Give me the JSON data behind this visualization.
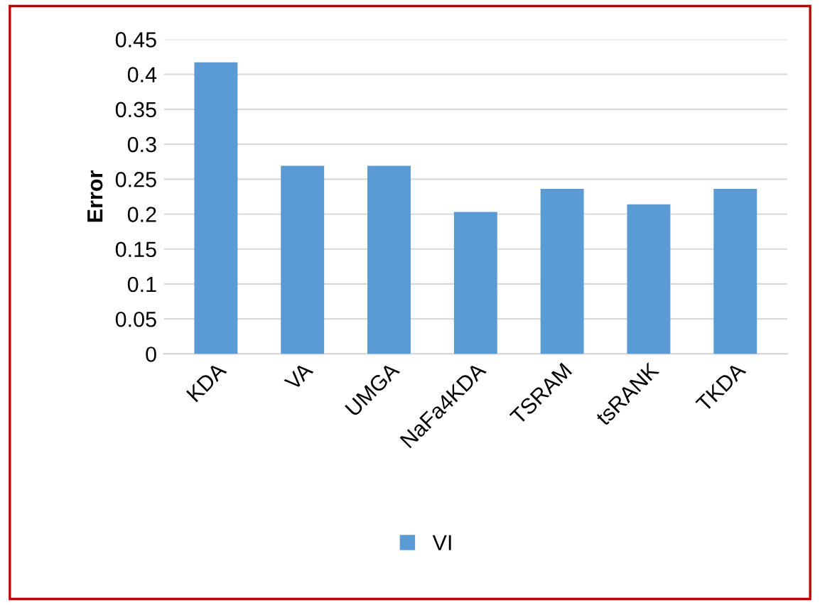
{
  "chart_data": {
    "type": "bar",
    "ylabel": "Error",
    "categories": [
      "KDA",
      "VA",
      "UMGA",
      "NaFa4KDA",
      "TSRAM",
      "tsRANK",
      "TKDA"
    ],
    "series": [
      {
        "name": "VI",
        "color": "#5b9bd5",
        "values": [
          0.417,
          0.269,
          0.269,
          0.203,
          0.236,
          0.214,
          0.236
        ]
      }
    ],
    "ylim": [
      0,
      0.45
    ],
    "yticks": [
      0,
      {
        "value": 0.05,
        "label": "0.05"
      },
      {
        "value": 0.1,
        "label": "0.1"
      },
      {
        "value": 0.15,
        "label": "0.15"
      },
      {
        "value": 0.2,
        "label": "0.2"
      },
      {
        "value": 0.25,
        "label": "0.25"
      },
      {
        "value": 0.3,
        "label": "0.3"
      },
      {
        "value": 0.35,
        "label": "0.35"
      },
      {
        "value": 0.4,
        "label": "0.4"
      },
      {
        "value": 0.45,
        "label": "0.45"
      }
    ],
    "grid": "y",
    "legend": "bottom"
  }
}
